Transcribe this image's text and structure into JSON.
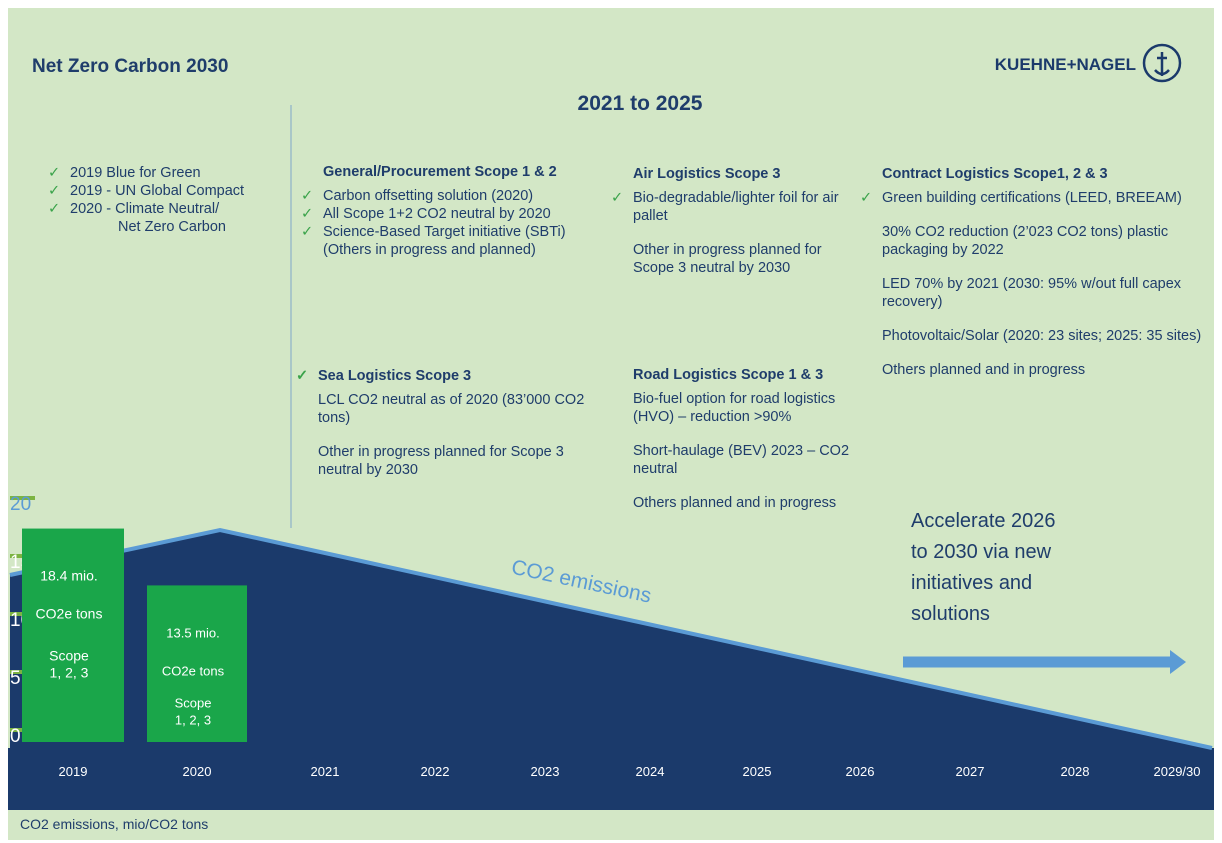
{
  "chart_data": {
    "type": "bar",
    "title": "Net Zero Carbon 2030",
    "brand": "KUEHNE+NAGEL",
    "categories": [
      "2019",
      "2020",
      "2021",
      "2022",
      "2023",
      "2024",
      "2025",
      "2026",
      "2027",
      "2028",
      "2029/30"
    ],
    "values": [
      18.4,
      13.5,
      null,
      null,
      null,
      null,
      null,
      null,
      null,
      null,
      null
    ],
    "value_labels": [
      "18.4 mio.",
      "13.5 mio.",
      null,
      null,
      null,
      null,
      null,
      null,
      null,
      null,
      null
    ],
    "bar_unit": "CO2e tons",
    "bar_scope": [
      "Scope",
      "1, 2, 3"
    ],
    "color": "#1aa64a",
    "ylim": [
      0,
      20
    ],
    "yticks": [
      0,
      5,
      10,
      15,
      20
    ],
    "y_label": "CO2 emissions, mio/CO2 tons",
    "line_label": "CO2 emissions",
    "annotation": [
      "Accelerate 2026",
      "to 2030 via new",
      "initiatives and",
      "solutions"
    ]
  },
  "panel": {
    "heading": "2021 to 2025",
    "milestones": [
      {
        "text": "2019  Blue for Green",
        "checked": true
      },
      {
        "text": "2019 - UN Global Compact",
        "checked": true
      },
      {
        "text": "2020 - Climate Neutral/",
        "checked": true
      },
      {
        "text": "Net Zero Carbon",
        "checked": false
      }
    ],
    "sections": [
      {
        "title": "General/Procurement Scope 1 & 2",
        "checked": false,
        "items": [
          {
            "text": "Carbon offsetting solution (2020)",
            "checked": true
          },
          {
            "text": "All Scope 1+2 CO2 neutral by 2020",
            "checked": true
          },
          {
            "text": "Science-Based Target initiative (SBTi) (Others  in progress and planned)",
            "checked": true
          }
        ]
      },
      {
        "title": "Sea Logistics  Scope 3",
        "checked": true,
        "items": [
          {
            "text": "LCL CO2 neutral as of 2020 (83’000 CO2 tons)",
            "checked": false
          },
          {
            "text": "Other in progress planned for Scope 3 neutral by 2030",
            "checked": false
          }
        ]
      },
      {
        "title": "Air Logistics  Scope 3",
        "checked": false,
        "items": [
          {
            "text": "Bio-degradable/lighter foil for air pallet",
            "checked": true
          },
          {
            "text": "Other in progress planned for Scope 3 neutral by 2030",
            "checked": false
          }
        ]
      },
      {
        "title": "Road Logistics  Scope 1  & 3",
        "checked": false,
        "items": [
          {
            "text": "Bio-fuel option for road logistics (HVO) – reduction >90%",
            "checked": false
          },
          {
            "text": "Short-haulage (BEV) 2023 – CO2 neutral",
            "checked": false
          },
          {
            "text": "Others planned and in progress",
            "checked": false
          }
        ]
      },
      {
        "title": "Contract Logistics  Scope1, 2 & 3",
        "checked": false,
        "items": [
          {
            "text": "Green building certifications (LEED, BREEAM)",
            "checked": true
          },
          {
            "text": "30% CO2 reduction (2’023 CO2 tons) plastic packaging by 2022",
            "checked": false
          },
          {
            "text": "LED 70% by 2021 (2030: 95% w/out full capex recovery)",
            "checked": false
          },
          {
            "text": "Photovoltaic/Solar  (2020: 23 sites; 2025: 35 sites)",
            "checked": false
          },
          {
            "text": "Others planned and in progress",
            "checked": false
          }
        ]
      }
    ]
  }
}
